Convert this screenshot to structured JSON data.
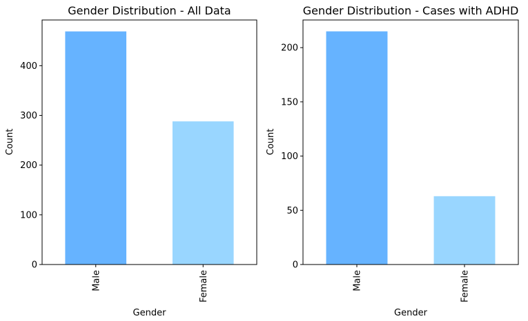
{
  "chart_data": [
    {
      "type": "bar",
      "title": "Gender Distribution - All Data",
      "xlabel": "Gender",
      "ylabel": "Count",
      "categories": [
        "Male",
        "Female"
      ],
      "values": [
        469,
        288
      ],
      "colors": [
        "#66b3ff",
        "#99d6ff"
      ],
      "ylim": [
        0,
        492
      ],
      "yticks": [
        0,
        100,
        200,
        300,
        400
      ],
      "ytick_labels": [
        "0",
        "100",
        "200",
        "300",
        "400"
      ]
    },
    {
      "type": "bar",
      "title": "Gender Distribution - Cases with ADHD",
      "xlabel": "Gender",
      "ylabel": "Count",
      "categories": [
        "Male",
        "Female"
      ],
      "values": [
        215,
        63
      ],
      "colors": [
        "#66b3ff",
        "#99d6ff"
      ],
      "ylim": [
        0,
        225.5
      ],
      "yticks": [
        0,
        50,
        100,
        150,
        200
      ],
      "ytick_labels": [
        "0",
        "50",
        "100",
        "150",
        "200"
      ]
    }
  ]
}
